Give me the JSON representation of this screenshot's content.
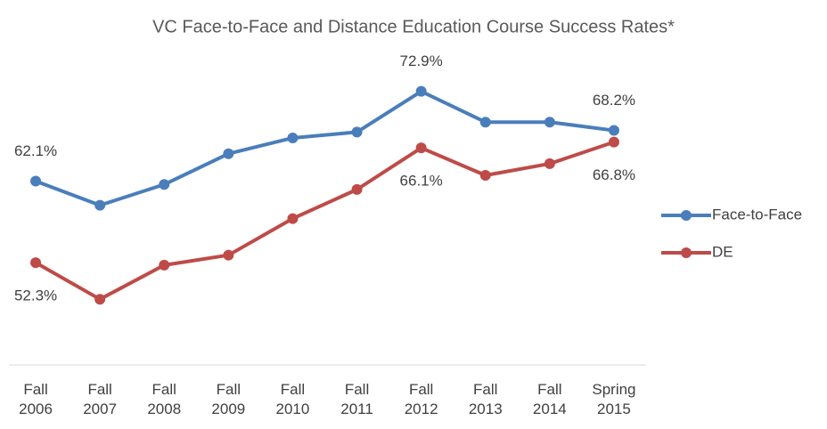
{
  "chart_data": {
    "type": "line",
    "title": "VC Face-to-Face and Distance Education Course Success Rates*",
    "categories": [
      "Fall 2006",
      "Fall 2007",
      "Fall 2008",
      "Fall 2009",
      "Fall 2010",
      "Fall 2011",
      "Fall 2012",
      "Fall 2013",
      "Fall 2014",
      "Spring 2015"
    ],
    "ylim": [
      40,
      78
    ],
    "legend": "right",
    "series": [
      {
        "name": "Face-to-Face",
        "color": "#4a7ebb",
        "values": [
          62.1,
          59.2,
          61.7,
          65.4,
          67.3,
          68.0,
          72.9,
          69.2,
          69.2,
          68.2
        ],
        "value_labels": [
          "62.1%",
          null,
          null,
          null,
          null,
          null,
          "72.9%",
          null,
          null,
          "68.2%"
        ]
      },
      {
        "name": "DE",
        "color": "#be4b48",
        "values": [
          52.3,
          47.9,
          52.0,
          53.2,
          57.6,
          61.1,
          66.1,
          62.8,
          64.2,
          66.8
        ],
        "value_labels": [
          "52.3%",
          null,
          null,
          null,
          null,
          null,
          "66.1%",
          null,
          null,
          "66.8%"
        ]
      }
    ]
  }
}
